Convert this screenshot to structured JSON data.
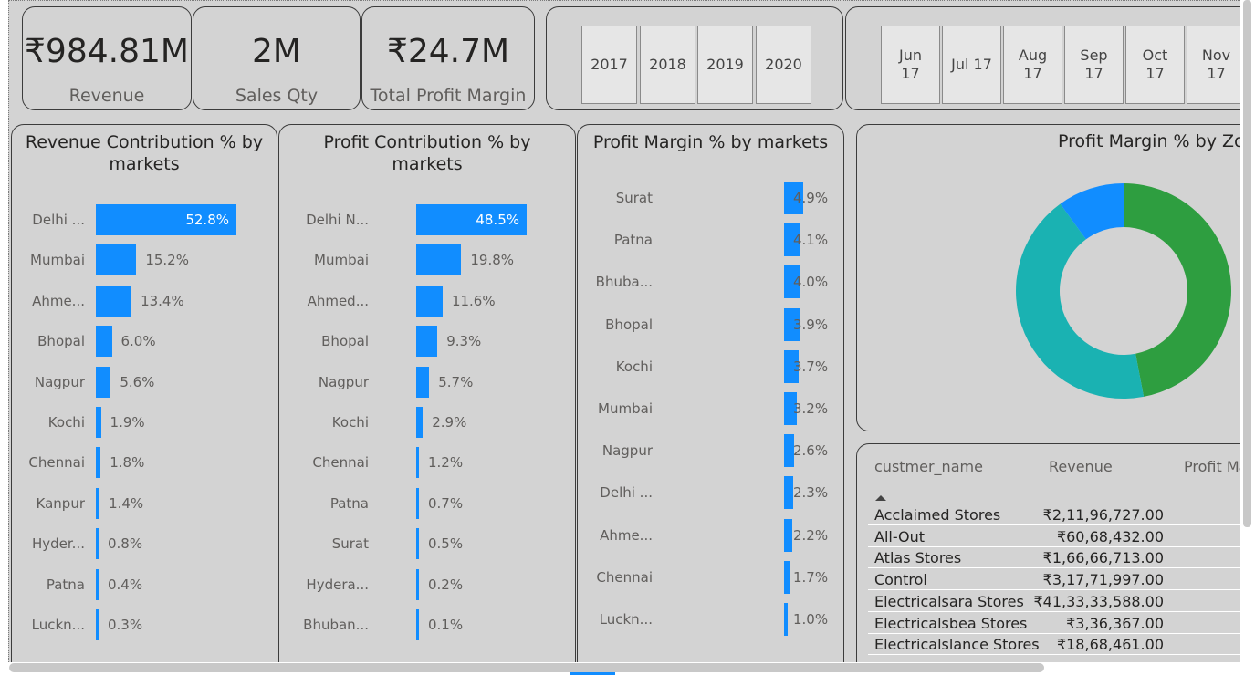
{
  "kpis": [
    {
      "value": "₹984.81M",
      "label": "Revenue"
    },
    {
      "value": "2M",
      "label": "Sales Qty"
    },
    {
      "value": "₹24.7M",
      "label": "Total Profit Margin"
    }
  ],
  "year_slicer": [
    "2017",
    "2018",
    "2019",
    "2020"
  ],
  "month_slicer": [
    {
      "line1": "Jun",
      "line2": "17"
    },
    {
      "line1": "Jul 17",
      "line2": ""
    },
    {
      "line1": "Aug",
      "line2": "17"
    },
    {
      "line1": "Sep",
      "line2": "17"
    },
    {
      "line1": "Oct",
      "line2": "17"
    },
    {
      "line1": "Nov",
      "line2": "17"
    }
  ],
  "charts": {
    "revenue_contribution": {
      "title": "Revenue Contribution % by markets",
      "color": "#118dff",
      "rows": [
        {
          "label": "Delhi ...",
          "value": 52.8,
          "text": "52.8%"
        },
        {
          "label": "Mumbai",
          "value": 15.2,
          "text": "15.2%"
        },
        {
          "label": "Ahme...",
          "value": 13.4,
          "text": "13.4%"
        },
        {
          "label": "Bhopal",
          "value": 6.0,
          "text": "6.0%"
        },
        {
          "label": "Nagpur",
          "value": 5.6,
          "text": "5.6%"
        },
        {
          "label": "Kochi",
          "value": 1.9,
          "text": "1.9%"
        },
        {
          "label": "Chennai",
          "value": 1.8,
          "text": "1.8%"
        },
        {
          "label": "Kanpur",
          "value": 1.4,
          "text": "1.4%"
        },
        {
          "label": "Hyder...",
          "value": 0.8,
          "text": "0.8%"
        },
        {
          "label": "Patna",
          "value": 0.4,
          "text": "0.4%"
        },
        {
          "label": "Luckn...",
          "value": 0.3,
          "text": "0.3%"
        }
      ]
    },
    "profit_contribution": {
      "title": "Profit Contribution % by markets",
      "color": "#118dff",
      "rows": [
        {
          "label": "Delhi N...",
          "value": 48.5,
          "text": "48.5%"
        },
        {
          "label": "Mumbai",
          "value": 19.8,
          "text": "19.8%"
        },
        {
          "label": "Ahmed...",
          "value": 11.6,
          "text": "11.6%"
        },
        {
          "label": "Bhopal",
          "value": 9.3,
          "text": "9.3%"
        },
        {
          "label": "Nagpur",
          "value": 5.7,
          "text": "5.7%"
        },
        {
          "label": "Kochi",
          "value": 2.9,
          "text": "2.9%"
        },
        {
          "label": "Chennai",
          "value": 1.2,
          "text": "1.2%"
        },
        {
          "label": "Patna",
          "value": 0.7,
          "text": "0.7%"
        },
        {
          "label": "Surat",
          "value": 0.5,
          "text": "0.5%"
        },
        {
          "label": "Hydera...",
          "value": 0.2,
          "text": "0.2%"
        },
        {
          "label": "Bhuban...",
          "value": 0.1,
          "text": "0.1%"
        }
      ]
    },
    "profit_margin": {
      "title": "Profit Margin % by markets",
      "color": "#118dff",
      "rows": [
        {
          "label": "Surat",
          "value": 4.9,
          "text": "4.9%"
        },
        {
          "label": "Patna",
          "value": 4.1,
          "text": "4.1%"
        },
        {
          "label": "Bhuba...",
          "value": 4.0,
          "text": "4.0%"
        },
        {
          "label": "Bhopal",
          "value": 3.9,
          "text": "3.9%"
        },
        {
          "label": "Kochi",
          "value": 3.7,
          "text": "3.7%"
        },
        {
          "label": "Mumbai",
          "value": 3.2,
          "text": "3.2%"
        },
        {
          "label": "Nagpur",
          "value": 2.6,
          "text": "2.6%"
        },
        {
          "label": "Delhi ...",
          "value": 2.3,
          "text": "2.3%"
        },
        {
          "label": "Ahme...",
          "value": 2.2,
          "text": "2.2%"
        },
        {
          "label": "Chennai",
          "value": 1.7,
          "text": "1.7%"
        },
        {
          "label": "Luckn...",
          "value": 1.0,
          "text": "1.0%"
        }
      ]
    },
    "profit_margin_zone": {
      "title": "Profit Margin % by Zo",
      "slices": [
        {
          "value": 47,
          "color": "#2e9e40"
        },
        {
          "value": 43,
          "color": "#1ab2b2"
        },
        {
          "value": 10,
          "color": "#118dff"
        }
      ]
    }
  },
  "table": {
    "headers": [
      "custmer_name",
      "Revenue",
      "Profit Ma"
    ],
    "sort_icon": "sort-ascending-icon",
    "rows": [
      {
        "name": "Acclaimed Stores",
        "revenue": "₹2,11,96,727.00"
      },
      {
        "name": "All-Out",
        "revenue": "₹60,68,432.00"
      },
      {
        "name": "Atlas Stores",
        "revenue": "₹1,66,66,713.00"
      },
      {
        "name": "Control",
        "revenue": "₹3,17,71,997.00"
      },
      {
        "name": "Electricalsara Stores",
        "revenue": "₹41,33,33,588.00"
      },
      {
        "name": "Electricalsbea Stores",
        "revenue": "₹3,36,367.00"
      },
      {
        "name": "Electricalslance Stores",
        "revenue": "₹18,68,461.00"
      }
    ]
  }
}
